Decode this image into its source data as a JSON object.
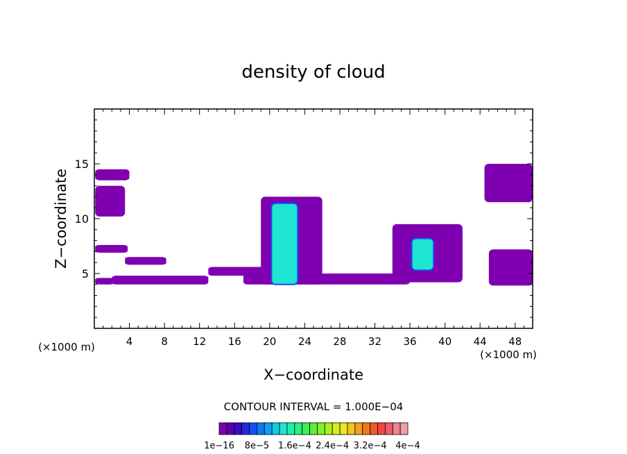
{
  "chart_data": {
    "type": "heatmap",
    "title": "density of cloud",
    "xlabel": "X−coordinate",
    "ylabel": "Z−coordinate",
    "x_unit_left": "(×1000 m)",
    "x_unit_right": "(×1000 m)",
    "xlim": [
      0,
      50
    ],
    "ylim": [
      0,
      20
    ],
    "x_ticks": [
      4,
      8,
      12,
      16,
      20,
      24,
      28,
      32,
      36,
      40,
      44,
      48
    ],
    "y_ticks": [
      5,
      10,
      15
    ],
    "contour_interval_label": "CONTOUR INTERVAL = 1.000E−04",
    "colorbar_labels": [
      "1e−16",
      "8e−5",
      "1.6e−4",
      "2.4e−4",
      "3.2e−4",
      "4e−4"
    ],
    "colorbar_colors": [
      "#7f00b0",
      "#5a00b4",
      "#3c0ac8",
      "#2828dc",
      "#1450f0",
      "#0a78f5",
      "#0aa0f0",
      "#14c8e6",
      "#1ee6d2",
      "#1ef0aa",
      "#28f082",
      "#3cf05a",
      "#5af03c",
      "#82f028",
      "#aaf01e",
      "#d2f01e",
      "#f0e61e",
      "#f0c81e",
      "#f0a01e",
      "#f0781e",
      "#f05a28",
      "#f04646",
      "#f05a6e",
      "#f08296",
      "#f0a0aa"
    ],
    "cloud_regions": [
      {
        "level": "low",
        "x": [
          0.1,
          4.0
        ],
        "z": [
          13.5,
          14.5
        ]
      },
      {
        "level": "low",
        "x": [
          0.1,
          3.5
        ],
        "z": [
          10.2,
          13.0
        ]
      },
      {
        "level": "low",
        "x": [
          0.1,
          3.8
        ],
        "z": [
          6.9,
          7.6
        ]
      },
      {
        "level": "low",
        "x": [
          3.5,
          8.2
        ],
        "z": [
          5.8,
          6.5
        ]
      },
      {
        "level": "low",
        "x": [
          0.1,
          2.2
        ],
        "z": [
          4.0,
          4.6
        ]
      },
      {
        "level": "low",
        "x": [
          2.0,
          13.0
        ],
        "z": [
          4.0,
          4.8
        ]
      },
      {
        "level": "low",
        "x": [
          13.0,
          20.0
        ],
        "z": [
          4.8,
          5.6
        ]
      },
      {
        "level": "low",
        "x": [
          17.0,
          36.0
        ],
        "z": [
          4.0,
          5.0
        ]
      },
      {
        "level": "low",
        "x": [
          19.0,
          26.0
        ],
        "z": [
          4.0,
          12.0
        ]
      },
      {
        "level": "high",
        "x": [
          20.2,
          23.2
        ],
        "z": [
          4.0,
          11.4
        ]
      },
      {
        "level": "low",
        "x": [
          34.0,
          42.0
        ],
        "z": [
          4.2,
          9.5
        ]
      },
      {
        "level": "high",
        "x": [
          36.2,
          38.7
        ],
        "z": [
          5.3,
          8.2
        ]
      },
      {
        "level": "low",
        "x": [
          44.5,
          50.0
        ],
        "z": [
          11.5,
          15.0
        ]
      },
      {
        "level": "low",
        "x": [
          45.0,
          50.0
        ],
        "z": [
          3.9,
          7.2
        ]
      }
    ]
  }
}
